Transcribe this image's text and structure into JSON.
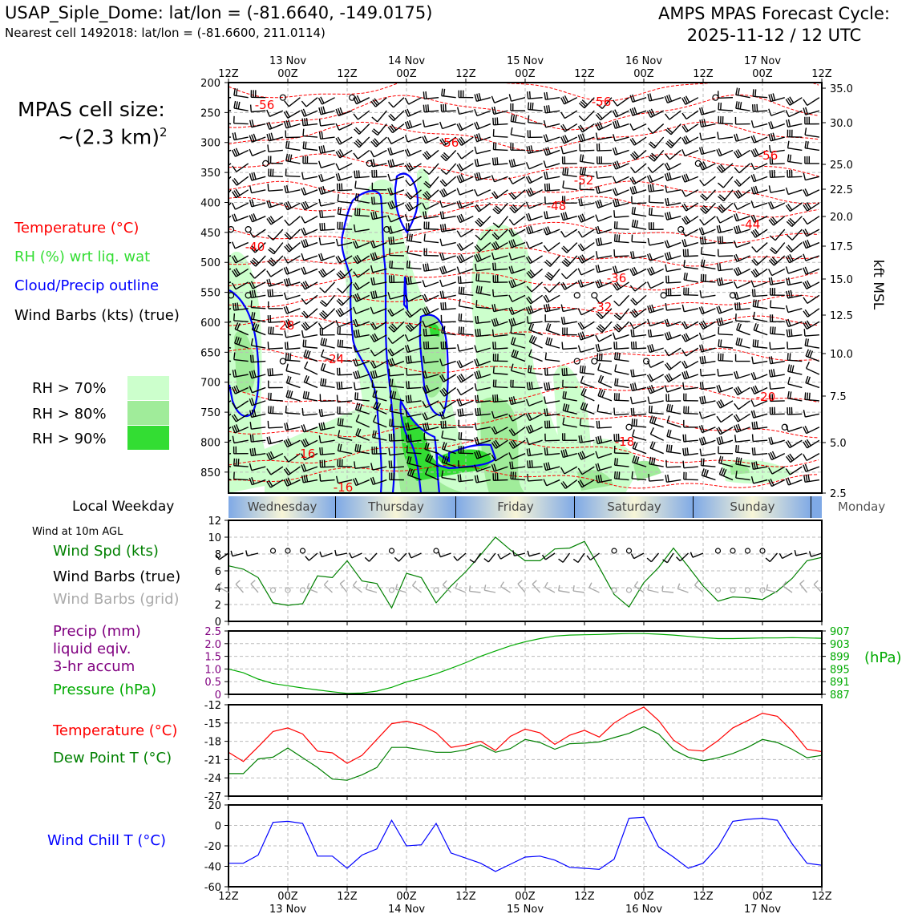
{
  "header": {
    "title_left": "USAP_Siple_Dome: lat/lon = (-81.6640, -149.0175)",
    "subtitle_left": "Nearest cell 1492018: lat/lon = (-81.6600, 211.0114)",
    "title_right_line1": "AMPS MPAS Forecast Cycle:",
    "title_right_line2": "2025-11-12 / 12 UTC"
  },
  "cell_size": {
    "line1": "MPAS cell size:",
    "line2": "~(2.3 km)",
    "sup": "2"
  },
  "legend": {
    "temperature": "Temperature (°C)",
    "rh": "RH (%) wrt liq. wat",
    "cloud": "Cloud/Precip outline",
    "wind": "Wind Barbs (kts) (true)",
    "rh70": "RH > 70%",
    "rh80": "RH > 80%",
    "rh90": "RH > 90%",
    "colors": {
      "temperature": "#ff0000",
      "rh": "#33dd33",
      "cloud": "#0000ff",
      "rh70": "#ccffcc",
      "rh80": "#a0ec9a",
      "rh90": "#33dd33"
    }
  },
  "time_axis": {
    "hour_labels": [
      "12Z",
      "00Z",
      "12Z",
      "00Z",
      "12Z",
      "00Z",
      "12Z",
      "00Z",
      "12Z",
      "00Z",
      "12Z"
    ],
    "day_labels": [
      "13 Nov",
      "14 Nov",
      "15 Nov",
      "16 Nov",
      "17 Nov"
    ]
  },
  "weekday": {
    "title": "Local Weekday",
    "days": [
      "Wednesday",
      "Thursday",
      "Friday",
      "Saturday",
      "Sunday"
    ],
    "next": "Monday"
  },
  "chart_data": [
    {
      "type": "line",
      "name": "cross-section",
      "ylabel_right": "kft MSL",
      "pressure_ticks": [
        200,
        250,
        300,
        350,
        400,
        450,
        500,
        550,
        600,
        650,
        700,
        750,
        800,
        850
      ],
      "height_ticks": [
        "35.0",
        "30.0",
        "25.0",
        "22.5",
        "20.0",
        "17.5",
        "15.0",
        "12.5",
        "10.0",
        "7.5",
        "5.0",
        "2.5"
      ],
      "temperature_contour_labels": [
        "-56",
        "-56",
        "-56",
        "-56",
        "-52",
        "-48",
        "-44",
        "-40",
        "-36",
        "-32",
        "-28",
        "-24",
        "-20",
        "-18",
        "-16",
        "-16"
      ],
      "ylim_hPa": [
        200,
        885
      ]
    },
    {
      "type": "line",
      "name": "surface-wind",
      "title": "Wind at 10m AGL",
      "series_labels": [
        "Wind Spd (kts)",
        "Wind Barbs (true)",
        "Wind Barbs (grid)"
      ],
      "ylim": [
        0,
        12
      ],
      "yticks": [
        "0",
        "2",
        "4",
        "6",
        "8",
        "10",
        "12"
      ],
      "x_hours": [
        0,
        3,
        6,
        9,
        12,
        15,
        18,
        21,
        24,
        27,
        30,
        33,
        36,
        39,
        42,
        45,
        48,
        51,
        54,
        57,
        60,
        63,
        66,
        69,
        72,
        75,
        78,
        81,
        84,
        87,
        90,
        93,
        96,
        99,
        102,
        105,
        108,
        111,
        114,
        117,
        120
      ],
      "values": [
        6.6,
        6.2,
        5.2,
        2.2,
        1.9,
        2.1,
        5.4,
        5.2,
        7.2,
        4.8,
        4.5,
        1.6,
        5.7,
        5.2,
        2.2,
        4.2,
        5.9,
        7.9,
        10.0,
        8.5,
        7.2,
        7.2,
        8.6,
        8.7,
        9.5,
        6.4,
        3.2,
        1.7,
        4.6,
        6.4,
        8.7,
        6.5,
        4.2,
        2.4,
        2.9,
        2.8,
        2.6,
        3.6,
        5.1,
        7.2,
        7.6
      ],
      "color": "#008000"
    },
    {
      "type": "line",
      "name": "precip-pressure",
      "series_labels": [
        "Precip (mm)",
        "liquid eqiv.",
        "3-hr accum",
        "Pressure (hPa)"
      ],
      "left_yticks": [
        "0",
        "0.5",
        "1.0",
        "1.5",
        "2.0",
        "2.5"
      ],
      "right_yticks": [
        "887",
        "891",
        "895",
        "899",
        "903",
        "907"
      ],
      "right_label": "(hPa)",
      "pressure_ylim": [
        887,
        907
      ],
      "x_hours": [
        0,
        3,
        6,
        9,
        12,
        15,
        18,
        21,
        24,
        27,
        30,
        33,
        36,
        39,
        42,
        45,
        48,
        51,
        54,
        57,
        60,
        63,
        66,
        69,
        72,
        75,
        78,
        81,
        84,
        87,
        90,
        93,
        96,
        99,
        102,
        105,
        108,
        111,
        114,
        117,
        120
      ],
      "pressure": [
        895.0,
        893.8,
        891.8,
        890.4,
        889.7,
        889.0,
        888.4,
        887.8,
        887.3,
        887.4,
        888.0,
        889.2,
        890.9,
        892.1,
        893.5,
        895.2,
        897.0,
        899.0,
        900.7,
        902.3,
        903.6,
        904.6,
        905.4,
        905.7,
        905.8,
        905.9,
        906.1,
        906.2,
        906.2,
        906.0,
        905.7,
        905.3,
        904.9,
        904.6,
        904.6,
        904.7,
        904.8,
        904.8,
        904.9,
        904.8,
        904.7
      ],
      "precip": [],
      "colors": {
        "precip": "#800080",
        "pressure": "#00aa00"
      }
    },
    {
      "type": "line",
      "name": "temperature-dewpoint",
      "series_labels": [
        "Temperature (°C)",
        "Dew Point T (°C)"
      ],
      "ylim": [
        -27,
        -12
      ],
      "yticks": [
        "-27",
        "-24",
        "-21",
        "-18",
        "-15",
        "-12"
      ],
      "x_hours": [
        0,
        3,
        6,
        9,
        12,
        15,
        18,
        21,
        24,
        27,
        30,
        33,
        36,
        39,
        42,
        45,
        48,
        51,
        54,
        57,
        60,
        63,
        66,
        69,
        72,
        75,
        78,
        81,
        84,
        87,
        90,
        93,
        96,
        99,
        102,
        105,
        108,
        111,
        114,
        117,
        120
      ],
      "series": [
        {
          "name": "Temperature (°C)",
          "values": [
            -19.8,
            -21.3,
            -18.9,
            -16.4,
            -15.8,
            -16.8,
            -19.6,
            -19.9,
            -21.6,
            -20.3,
            -17.7,
            -15.1,
            -14.7,
            -15.3,
            -16.6,
            -19.0,
            -18.6,
            -18.0,
            -19.5,
            -17.2,
            -16.0,
            -16.6,
            -18.5,
            -17.0,
            -16.2,
            -17.3,
            -15.0,
            -13.5,
            -12.4,
            -14.6,
            -17.8,
            -19.4,
            -19.6,
            -17.9,
            -15.8,
            -14.6,
            -13.4,
            -13.9,
            -16.3,
            -19.3,
            -19.7
          ]
        },
        {
          "name": "Dew Point T (°C)",
          "values": [
            -23.3,
            -23.3,
            -20.9,
            -20.6,
            -19.1,
            -20.7,
            -22.3,
            -24.2,
            -24.4,
            -23.5,
            -22.3,
            -19.0,
            -19.0,
            -19.4,
            -19.8,
            -19.8,
            -19.4,
            -18.6,
            -19.8,
            -19.2,
            -17.7,
            -18.2,
            -19.3,
            -18.4,
            -18.3,
            -18.1,
            -17.4,
            -16.7,
            -15.6,
            -16.8,
            -19.4,
            -20.6,
            -21.2,
            -20.7,
            -20.0,
            -19.0,
            -17.7,
            -18.2,
            -19.3,
            -20.7,
            -20.3
          ]
        }
      ],
      "colors": {
        "temperature": "#ff0000",
        "dewpoint": "#008000"
      }
    },
    {
      "type": "line",
      "name": "wind-chill",
      "series_labels": [
        "Wind Chill T (°C)"
      ],
      "ylim": [
        -60,
        20
      ],
      "yticks": [
        "-60",
        "-40",
        "-20",
        "0",
        "20"
      ],
      "x_hours": [
        0,
        3,
        6,
        9,
        12,
        15,
        18,
        21,
        24,
        27,
        30,
        33,
        36,
        39,
        42,
        45,
        48,
        51,
        54,
        57,
        60,
        63,
        66,
        69,
        72,
        75,
        78,
        81,
        84,
        87,
        90,
        93,
        96,
        99,
        102,
        105,
        108,
        111,
        114,
        117,
        120
      ],
      "values": [
        -37,
        -37,
        -29,
        3,
        4,
        2,
        -30,
        -30,
        -42,
        -29,
        -23,
        5,
        -20,
        -19,
        2,
        -27,
        -32,
        -37,
        -45,
        -38,
        -31,
        -30,
        -34,
        -41,
        -42,
        -43,
        -33,
        7,
        8,
        -21,
        -31,
        -42,
        -37,
        -21,
        4,
        6,
        7,
        5,
        -18,
        -37,
        -39
      ],
      "color": "#0000ff"
    }
  ]
}
